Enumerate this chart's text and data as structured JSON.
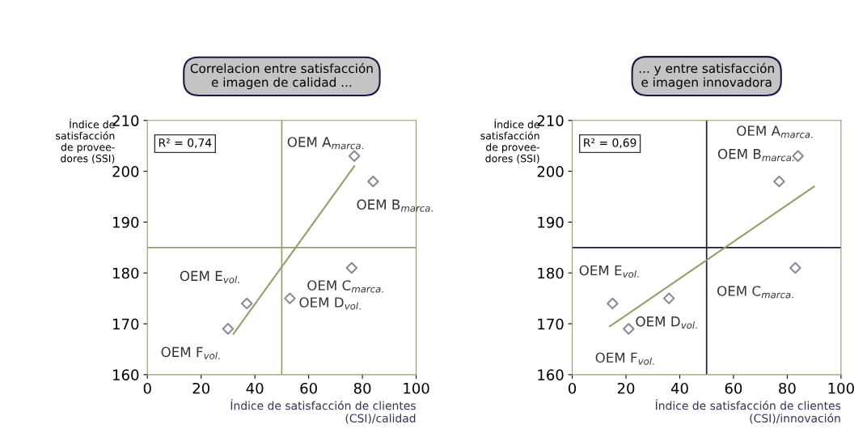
{
  "chart_data": [
    {
      "type": "scatter",
      "title": "Correlacion entre satisfacción\ne imagen de calidad ...",
      "xlabel": "Índice de satisfacción de clientes\n(CSI)/calidad",
      "ylabel": "Índice de\nsatisfacción\nde provee-\ndores (SSI)",
      "series": [
        {
          "color": "#8a8a9a",
          "x": [
            77,
            84,
            76,
            53,
            37,
            30
          ],
          "values": [
            203,
            198,
            181,
            175,
            174,
            169
          ],
          "marker": "diamond"
        },
        {
          "type": "line",
          "color": "#9a9a6a",
          "x": [
            32,
            77
          ],
          "values": [
            168,
            201
          ],
          "marker": "none"
        }
      ],
      "xlim": [
        0,
        100
      ],
      "ylim": [
        160,
        210
      ],
      "xticks": [
        0,
        20,
        40,
        60,
        80,
        100
      ],
      "yticks": [
        160,
        170,
        180,
        190,
        200,
        210
      ],
      "ref_lines": [
        {
          "axis": "x",
          "value": 50,
          "color": "#9a9a6a"
        },
        {
          "axis": "y",
          "value": 185,
          "color": "#9a9a6a"
        }
      ],
      "annotations": [
        "R² = 0,74",
        {
          "text": "OEM A$_{marca.}$",
          "x": 77,
          "y": 203
        },
        {
          "text": "OEM B$_{marca.}$",
          "x": 84,
          "y": 198
        },
        {
          "text": "OEM C$_{marca.}$",
          "x": 76,
          "y": 181
        },
        {
          "text": "OEM D$_{vol.}$",
          "x": 53,
          "y": 175
        },
        {
          "text": "OEM E$_{vol.}$",
          "x": 37,
          "y": 174
        },
        {
          "text": "OEM F$_{vol.}$",
          "x": 30,
          "y": 169
        }
      ],
      "grid": false,
      "legend": false
    },
    {
      "type": "scatter",
      "title": "... y entre satisfacción\ne imagen innovadora",
      "xlabel": "Índice de satisfacción de clientes\n(CSI)/innovación",
      "ylabel": "Índice de\nsatisfacción\nde provee-\ndores (SSI)",
      "series": [
        {
          "color": "#8a8a9a",
          "x": [
            84,
            77,
            83,
            36,
            15,
            21
          ],
          "values": [
            203,
            198,
            181,
            175,
            174,
            169
          ],
          "marker": "diamond"
        },
        {
          "type": "line",
          "color": "#9a9a6a",
          "x": [
            14,
            90
          ],
          "values": [
            169.5,
            197
          ],
          "marker": "none"
        }
      ],
      "xlim": [
        0,
        100
      ],
      "ylim": [
        160,
        210
      ],
      "xticks": [
        0,
        20,
        40,
        60,
        80,
        100
      ],
      "yticks": [
        160,
        170,
        180,
        190,
        200,
        210
      ],
      "ref_lines": [
        {
          "axis": "x",
          "value": 50,
          "color": "#1a1a3a"
        },
        {
          "axis": "y",
          "value": 185,
          "color": "#1a1a3a"
        }
      ],
      "annotations": [
        "R² = 0,69",
        {
          "text": "OEM A$_{marca.}$",
          "x": 84,
          "y": 203
        },
        {
          "text": "OEM B$_{marca.}$",
          "x": 77,
          "y": 198
        },
        {
          "text": "OEM C$_{marca.}$",
          "x": 83,
          "y": 181
        },
        {
          "text": "OEM D$_{vol.}$",
          "x": 36,
          "y": 175
        },
        {
          "text": "OEM E$_{vol.}$",
          "x": 15,
          "y": 174
        },
        {
          "text": "OEM F$_{vol.}$",
          "x": 21,
          "y": 169
        }
      ],
      "grid": false,
      "legend": false
    }
  ]
}
